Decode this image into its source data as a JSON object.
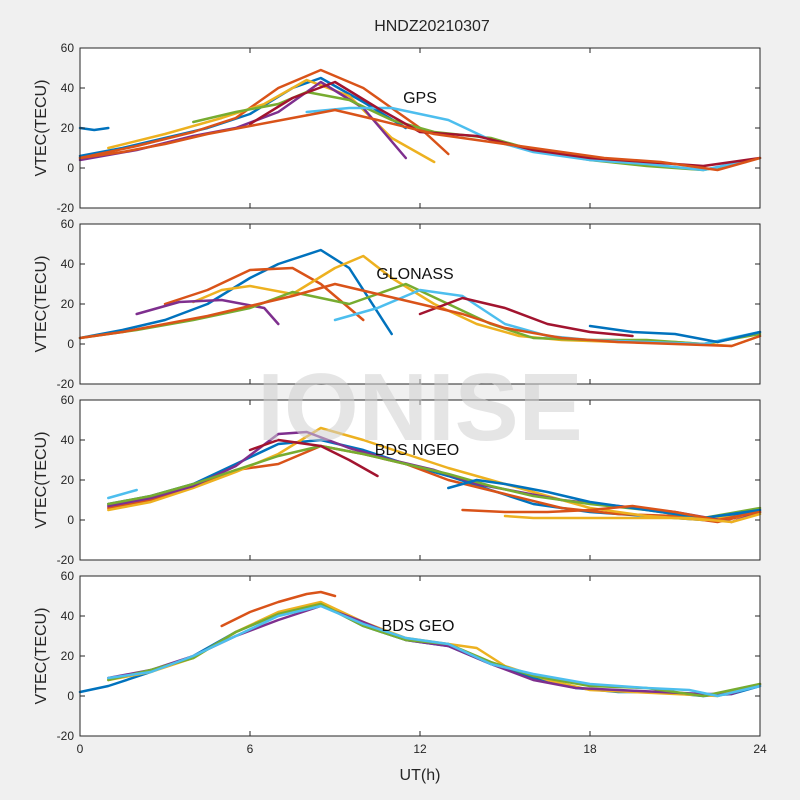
{
  "title": "HNDZ20210307",
  "watermark": "IONISE",
  "xlabel": "UT(h)",
  "x_ticks": [
    0,
    6,
    12,
    18,
    24
  ],
  "y_ticks": [
    -20,
    0,
    20,
    40,
    60
  ],
  "colors": [
    "#0072BD",
    "#D95319",
    "#EDB120",
    "#7E2F8E",
    "#77AC30",
    "#4DBEEE",
    "#A2142F"
  ],
  "chart_data": [
    {
      "type": "line",
      "annotation": "GPS",
      "ylabel": "VTEC(TECU)",
      "xlim": [
        0,
        24
      ],
      "ylim": [
        -20,
        60
      ],
      "grid": false,
      "series": [
        {
          "x": [
            0,
            1.5,
            3,
            4.5,
            6,
            7.5,
            8.5,
            10,
            11.5
          ],
          "values": [
            6,
            10,
            15,
            20,
            27,
            40,
            45,
            33,
            20
          ]
        },
        {
          "x": [
            0,
            2,
            4,
            5.5,
            7,
            8.5,
            10,
            12,
            13
          ],
          "values": [
            5,
            11,
            18,
            25,
            40,
            49,
            40,
            20,
            7
          ]
        },
        {
          "x": [
            1,
            3,
            5,
            6.5,
            8,
            9.5,
            11,
            12.5
          ],
          "values": [
            10,
            17,
            25,
            32,
            44,
            36,
            15,
            3
          ]
        },
        {
          "x": [
            0,
            2,
            4,
            5.5,
            7,
            8.5,
            10,
            11.5
          ],
          "values": [
            4,
            9,
            16,
            20,
            28,
            43,
            30,
            5
          ]
        },
        {
          "x": [
            4,
            5.5,
            7,
            8,
            9.5,
            11,
            12.5,
            14.5,
            16,
            18,
            20,
            22,
            23.5
          ],
          "values": [
            23,
            28,
            32,
            38,
            34,
            24,
            18,
            15,
            9,
            4,
            1,
            -1,
            3
          ]
        },
        {
          "x": [
            8,
            9.5,
            11,
            13,
            14.5,
            16,
            18,
            20,
            22,
            24
          ],
          "values": [
            28,
            30,
            30,
            24,
            14,
            8,
            4,
            2,
            -1,
            5
          ]
        },
        {
          "x": [
            6,
            7.5,
            9,
            10.5,
            12,
            14,
            16,
            18,
            20,
            22,
            24
          ],
          "values": [
            22,
            35,
            43,
            30,
            18,
            16,
            9,
            5,
            3,
            1,
            5
          ]
        },
        {
          "x": [
            0,
            0.5,
            1
          ],
          "values": [
            20,
            19,
            20
          ]
        },
        {
          "x": [
            0,
            1.5,
            3,
            4.5,
            6,
            7.5,
            9,
            10.5,
            12.5,
            14.5,
            16.5,
            18.5,
            20.5,
            22.5,
            24
          ],
          "values": [
            5,
            8,
            12,
            17,
            21,
            25,
            29,
            24,
            17,
            13,
            9,
            5,
            3,
            -1,
            5
          ]
        }
      ]
    },
    {
      "type": "line",
      "annotation": "GLONASS",
      "ylabel": "VTEC(TECU)",
      "xlim": [
        0,
        24
      ],
      "ylim": [
        -20,
        60
      ],
      "grid": false,
      "series": [
        {
          "x": [
            0,
            1.5,
            3,
            4.5,
            6,
            7,
            8.5,
            9.5,
            11
          ],
          "values": [
            3,
            7,
            12,
            20,
            33,
            40,
            47,
            38,
            5
          ]
        },
        {
          "x": [
            3,
            4.5,
            6,
            7.5,
            8.5,
            10
          ],
          "values": [
            20,
            27,
            37,
            38,
            30,
            12
          ]
        },
        {
          "x": [
            4,
            5,
            6,
            7.5,
            9,
            10,
            11,
            12.5,
            14,
            15.5,
            17,
            19,
            21,
            23,
            24
          ],
          "values": [
            21,
            27,
            29,
            25,
            38,
            44,
            33,
            20,
            10,
            4,
            2,
            1,
            1,
            -1,
            4
          ]
        },
        {
          "x": [
            2,
            3.5,
            5,
            6.5,
            7
          ],
          "values": [
            15,
            21,
            22,
            18,
            10
          ]
        },
        {
          "x": [
            0,
            2,
            4,
            6,
            7.5,
            9.5,
            11.5,
            13,
            14.5,
            16,
            18,
            20,
            22,
            24
          ],
          "values": [
            3,
            7,
            12,
            18,
            26,
            20,
            30,
            20,
            10,
            3,
            2,
            2,
            0,
            5
          ]
        },
        {
          "x": [
            9,
            10.5,
            12,
            13.5,
            15,
            16.5,
            18,
            20,
            22,
            24
          ],
          "values": [
            12,
            18,
            27,
            24,
            10,
            4,
            2,
            1,
            0,
            6
          ]
        },
        {
          "x": [
            12,
            13.5,
            15,
            16.5,
            18,
            19.5
          ],
          "values": [
            15,
            23,
            18,
            10,
            6,
            4
          ]
        },
        {
          "x": [
            18,
            19.5,
            21,
            22.5,
            24
          ],
          "values": [
            9,
            6,
            5,
            1,
            6
          ]
        },
        {
          "x": [
            0,
            1.5,
            3,
            4.5,
            6,
            7.5,
            9,
            10.5,
            12,
            13.5,
            15,
            17,
            19,
            21,
            23,
            24
          ],
          "values": [
            3,
            6,
            10,
            14,
            19,
            24,
            30,
            25,
            20,
            15,
            8,
            3,
            1,
            0,
            -1,
            4
          ]
        }
      ]
    },
    {
      "type": "line",
      "annotation": "BDS NGEO",
      "ylabel": "VTEC(TECU)",
      "xlim": [
        0,
        24
      ],
      "ylim": [
        -20,
        60
      ],
      "grid": false,
      "series": [
        {
          "x": [
            1,
            2.5,
            4,
            5.5,
            7,
            8.5,
            10,
            11.5,
            13,
            14.5,
            16,
            18,
            20,
            22,
            24
          ],
          "values": [
            8,
            12,
            18,
            28,
            38,
            40,
            35,
            28,
            22,
            15,
            8,
            4,
            2,
            0,
            5
          ]
        },
        {
          "x": [
            1,
            2.5,
            4,
            5.5,
            7,
            8.5,
            10,
            11.5,
            13,
            15,
            17,
            19,
            21,
            22.5,
            24
          ],
          "values": [
            6,
            10,
            17,
            25,
            28,
            37,
            33,
            28,
            20,
            13,
            6,
            3,
            2,
            -1,
            4
          ]
        },
        {
          "x": [
            1,
            2.5,
            4,
            5.5,
            7,
            8.5,
            10,
            11.5,
            13,
            14.5,
            16,
            18,
            20,
            22,
            24
          ],
          "values": [
            5,
            9,
            16,
            24,
            33,
            46,
            40,
            33,
            26,
            20,
            14,
            6,
            2,
            0,
            3
          ]
        },
        {
          "x": [
            1,
            2.5,
            4,
            5.5,
            7,
            8,
            9.5,
            11,
            12.5,
            14,
            15.5,
            17,
            19,
            21,
            23,
            24
          ],
          "values": [
            7,
            11,
            17,
            27,
            43,
            44,
            36,
            30,
            25,
            18,
            14,
            10,
            7,
            4,
            -1,
            4
          ]
        },
        {
          "x": [
            1,
            2.5,
            4,
            5.5,
            7,
            8.5,
            10,
            11.5,
            13,
            14.5,
            16,
            18,
            20,
            22,
            24
          ],
          "values": [
            8,
            12,
            18,
            25,
            32,
            37,
            33,
            28,
            23,
            17,
            12,
            8,
            5,
            1,
            6
          ]
        },
        {
          "x": [
            1,
            1.5,
            2
          ],
          "values": [
            11,
            13,
            15
          ]
        },
        {
          "x": [
            6,
            7,
            8.5,
            9.5,
            10.5
          ],
          "values": [
            35,
            40,
            37,
            30,
            22
          ]
        },
        {
          "x": [
            13,
            14,
            15,
            16.5,
            18,
            20,
            22,
            24
          ],
          "values": [
            16,
            20,
            18,
            14,
            9,
            5,
            1,
            5
          ]
        },
        {
          "x": [
            13.5,
            15,
            16.5,
            18,
            19.5,
            21,
            22.5,
            24
          ],
          "values": [
            5,
            4,
            4,
            5,
            7,
            4,
            0,
            4
          ]
        },
        {
          "x": [
            15,
            16,
            17,
            18.5,
            20,
            21.5,
            23,
            24
          ],
          "values": [
            2,
            1,
            1,
            1,
            1,
            1,
            -1,
            3
          ]
        }
      ]
    },
    {
      "type": "line",
      "annotation": "BDS GEO",
      "ylabel": "VTEC(TECU)",
      "xlim": [
        0,
        24
      ],
      "ylim": [
        -20,
        60
      ],
      "grid": false,
      "series": [
        {
          "x": [
            0,
            1,
            2.5,
            4,
            5.5,
            7,
            8.5,
            10,
            11.5,
            13,
            14.5,
            16,
            17.5,
            19,
            20.5,
            22,
            23,
            24
          ],
          "values": [
            2,
            5,
            12,
            20,
            32,
            41,
            46,
            35,
            28,
            25,
            16,
            9,
            4,
            2,
            2,
            0,
            1,
            5
          ]
        },
        {
          "x": [
            5,
            6,
            7,
            8,
            8.5,
            9
          ],
          "values": [
            35,
            42,
            47,
            51,
            52,
            50
          ]
        },
        {
          "x": [
            1,
            2.5,
            4,
            5.5,
            7,
            8.5,
            10,
            11.5,
            13,
            14,
            15,
            16.5,
            18,
            19.5,
            21,
            22.5,
            24
          ],
          "values": [
            8,
            12,
            19,
            32,
            42,
            47,
            37,
            29,
            26,
            24,
            15,
            8,
            3,
            2,
            1,
            0,
            6
          ]
        },
        {
          "x": [
            1,
            2.5,
            4,
            5.5,
            7,
            8.5,
            10,
            11.5,
            13,
            14.5,
            16,
            17.5,
            19,
            20.5,
            22,
            23,
            24
          ],
          "values": [
            9,
            13,
            20,
            30,
            38,
            45,
            37,
            28,
            25,
            16,
            8,
            4,
            3,
            2,
            1,
            1,
            6
          ]
        },
        {
          "x": [
            1,
            2.5,
            4,
            5.5,
            7,
            8.5,
            10,
            11.5,
            13,
            14.5,
            16,
            18,
            20,
            22,
            24
          ],
          "values": [
            8,
            13,
            19,
            32,
            41,
            46,
            35,
            28,
            26,
            17,
            10,
            5,
            4,
            0,
            6
          ]
        },
        {
          "x": [
            1,
            2.5,
            4,
            5.5,
            7,
            8.5,
            10,
            11.5,
            13,
            14.5,
            16,
            18,
            20,
            21.5,
            22.5,
            24
          ],
          "values": [
            9,
            12,
            20,
            30,
            40,
            45,
            36,
            29,
            26,
            16,
            11,
            6,
            4,
            3,
            0,
            5
          ]
        }
      ]
    }
  ]
}
